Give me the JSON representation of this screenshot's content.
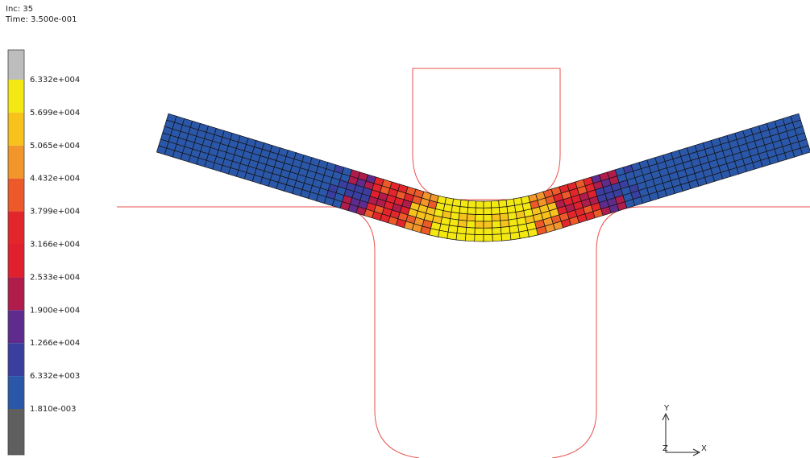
{
  "header": {
    "increment": "Inc:  35",
    "time": "Time: 3.500e-001"
  },
  "legend": {
    "labels": [
      "6.332e+004",
      "5.699e+004",
      "5.065e+004",
      "4.432e+004",
      "3.799e+004",
      "3.166e+004",
      "2.533e+004",
      "1.900e+004",
      "1.266e+004",
      "6.332e+003",
      "1.810e-003"
    ]
  },
  "triad": {
    "y": "Y",
    "z": "Z",
    "x": "X"
  }
}
